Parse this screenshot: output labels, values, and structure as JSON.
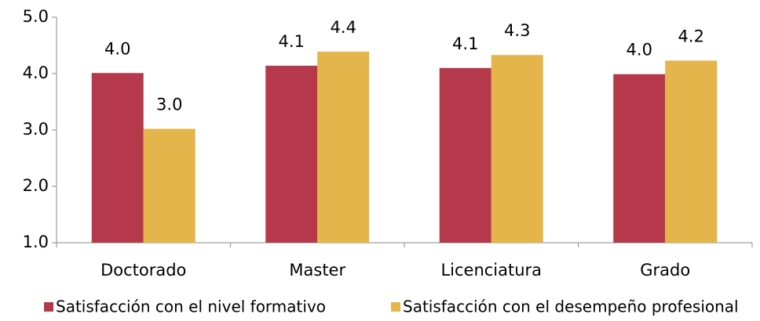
{
  "chart_data": {
    "type": "bar",
    "categories": [
      "Doctorado",
      "Master",
      "Licenciatura",
      "Grado"
    ],
    "series": [
      {
        "name": "Satisfacción con el nivel formativo",
        "color": "#b5394a",
        "values": [
          4.01,
          4.14,
          4.1,
          3.99
        ],
        "value_labels": [
          "4.0",
          "4.1",
          "4.1",
          "4.0"
        ]
      },
      {
        "name": "Satisfacción con el desempeño profesional",
        "color": "#e3b54a",
        "values": [
          3.02,
          4.39,
          4.33,
          4.23
        ],
        "value_labels": [
          "3.0",
          "4.4",
          "4.3",
          "4.2"
        ]
      }
    ],
    "ylim": [
      1,
      5
    ],
    "yticks": [
      {
        "value": 1,
        "label": "1.0"
      },
      {
        "value": 2,
        "label": "2.0"
      },
      {
        "value": 3,
        "label": "3.0"
      },
      {
        "value": 4,
        "label": "4.0"
      },
      {
        "value": 5,
        "label": "5.0"
      }
    ],
    "grid": false,
    "legend": "bottom"
  }
}
